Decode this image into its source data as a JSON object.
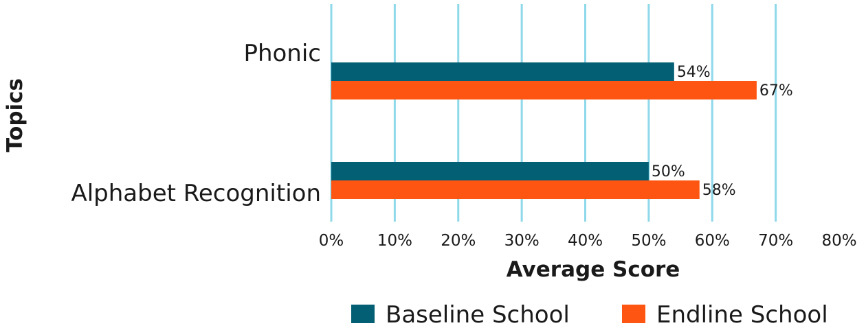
{
  "chart_data": {
    "type": "bar",
    "orientation": "horizontal",
    "categories": [
      "Phonic",
      "Alphabet Recognition"
    ],
    "series": [
      {
        "name": "Baseline School",
        "values": [
          54,
          50
        ],
        "value_labels": [
          "54%",
          "50%"
        ],
        "color": "#035f73"
      },
      {
        "name": "Endline School",
        "values": [
          67,
          58
        ],
        "value_labels": [
          "67%",
          "58%"
        ],
        "color": "#ff5512"
      }
    ],
    "xlabel": "Average Score",
    "ylabel": "Topics",
    "xlim": [
      0,
      80
    ],
    "x_ticks": [
      0,
      10,
      20,
      30,
      40,
      50,
      60,
      70,
      80
    ],
    "x_tick_labels": [
      "0%",
      "10%",
      "20%",
      "30%",
      "40%",
      "50%",
      "60%",
      "70%",
      "80%"
    ],
    "grid": "vertical",
    "gridline_color": "#8ed8ea",
    "legend_position": "bottom"
  }
}
